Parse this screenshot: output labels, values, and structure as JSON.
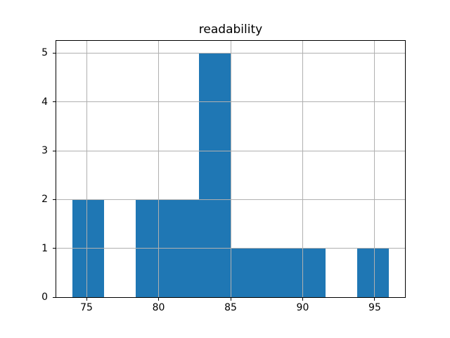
{
  "chart_data": {
    "type": "bar",
    "variant": "histogram",
    "title": "readability",
    "xlabel": "",
    "ylabel": "",
    "bin_edges": [
      74.0,
      76.2,
      78.4,
      80.6,
      82.8,
      85.0,
      87.2,
      89.4,
      91.6,
      93.8,
      96.0
    ],
    "counts": [
      2,
      0,
      2,
      2,
      5,
      1,
      1,
      1,
      0,
      1
    ],
    "x_ticks": [
      75,
      80,
      85,
      90,
      95
    ],
    "y_ticks": [
      0,
      1,
      2,
      3,
      4,
      5
    ],
    "xlim": [
      72.9,
      97.1
    ],
    "ylim": [
      0,
      5.25
    ],
    "grid": true,
    "legend": "none"
  },
  "colors": {
    "bar": "#1f77b4",
    "grid": "#b0b0b0",
    "spine": "#000000",
    "text": "#000000",
    "background": "#ffffff"
  }
}
